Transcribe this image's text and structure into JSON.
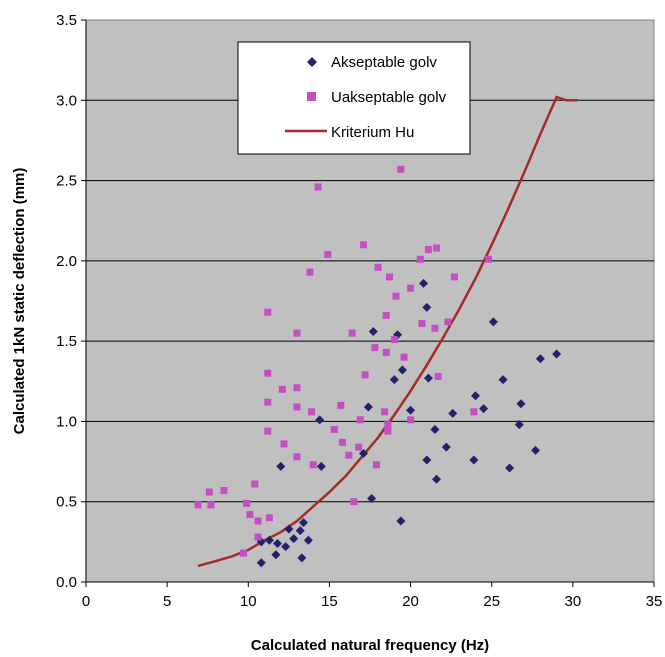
{
  "chart_data": {
    "type": "scatter",
    "title": "",
    "xlabel": "Calculated natural frequency (Hz)",
    "ylabel": "Calculated 1kN static deflection (mm)",
    "xlim": [
      0,
      35
    ],
    "ylim": [
      0,
      3.5
    ],
    "x_ticks": [
      "0",
      "5",
      "10",
      "15",
      "20",
      "25",
      "30",
      "35"
    ],
    "y_ticks": [
      "0.0",
      "0.5",
      "1.0",
      "1.5",
      "2.0",
      "2.5",
      "3.0",
      "3.5"
    ],
    "grid": "horizontal",
    "legend_position": "top-center",
    "plot_background": "#c0c0c0",
    "series": [
      {
        "name": "Akseptable golv",
        "marker": "diamond",
        "color": "#22226b",
        "points": [
          [
            10.8,
            0.12
          ],
          [
            10.8,
            0.25
          ],
          [
            11.3,
            0.26
          ],
          [
            11.7,
            0.17
          ],
          [
            11.8,
            0.24
          ],
          [
            12.0,
            0.72
          ],
          [
            12.3,
            0.22
          ],
          [
            12.5,
            0.33
          ],
          [
            12.8,
            0.27
          ],
          [
            13.2,
            0.32
          ],
          [
            13.3,
            0.15
          ],
          [
            13.4,
            0.37
          ],
          [
            13.7,
            0.26
          ],
          [
            14.4,
            1.01
          ],
          [
            14.5,
            0.72
          ],
          [
            17.1,
            0.8
          ],
          [
            17.4,
            1.09
          ],
          [
            17.6,
            0.52
          ],
          [
            17.7,
            1.56
          ],
          [
            19.0,
            1.26
          ],
          [
            19.2,
            1.54
          ],
          [
            19.4,
            0.38
          ],
          [
            19.5,
            1.32
          ],
          [
            20.0,
            1.07
          ],
          [
            20.8,
            1.86
          ],
          [
            21.0,
            1.71
          ],
          [
            21.0,
            0.76
          ],
          [
            21.1,
            1.27
          ],
          [
            21.5,
            0.95
          ],
          [
            21.6,
            0.64
          ],
          [
            22.2,
            0.84
          ],
          [
            22.6,
            1.05
          ],
          [
            23.9,
            0.76
          ],
          [
            24.0,
            1.16
          ],
          [
            24.5,
            1.08
          ],
          [
            25.1,
            1.62
          ],
          [
            25.7,
            1.26
          ],
          [
            26.1,
            0.71
          ],
          [
            26.7,
            0.98
          ],
          [
            26.8,
            1.11
          ],
          [
            27.7,
            0.82
          ],
          [
            28.0,
            1.39
          ],
          [
            29.0,
            1.42
          ]
        ]
      },
      {
        "name": "Uakseptable golv",
        "marker": "square",
        "color": "#c34fc3",
        "points": [
          [
            6.9,
            0.48
          ],
          [
            7.6,
            0.56
          ],
          [
            7.7,
            0.48
          ],
          [
            8.5,
            0.57
          ],
          [
            9.7,
            0.18
          ],
          [
            9.9,
            0.49
          ],
          [
            10.1,
            0.42
          ],
          [
            10.4,
            0.61
          ],
          [
            10.6,
            0.38
          ],
          [
            10.6,
            0.28
          ],
          [
            11.2,
            1.68
          ],
          [
            11.2,
            1.3
          ],
          [
            11.2,
            1.12
          ],
          [
            11.2,
            0.94
          ],
          [
            11.3,
            0.4
          ],
          [
            12.1,
            1.2
          ],
          [
            12.2,
            0.86
          ],
          [
            13.0,
            1.55
          ],
          [
            13.0,
            1.21
          ],
          [
            13.0,
            1.09
          ],
          [
            13.0,
            0.78
          ],
          [
            13.8,
            1.93
          ],
          [
            13.9,
            1.06
          ],
          [
            14.0,
            0.73
          ],
          [
            14.3,
            2.46
          ],
          [
            14.9,
            2.04
          ],
          [
            15.3,
            0.95
          ],
          [
            15.7,
            1.1
          ],
          [
            15.8,
            0.87
          ],
          [
            16.2,
            0.79
          ],
          [
            16.4,
            1.55
          ],
          [
            16.5,
            0.5
          ],
          [
            16.8,
            0.84
          ],
          [
            16.9,
            1.01
          ],
          [
            17.1,
            2.1
          ],
          [
            17.2,
            1.29
          ],
          [
            17.8,
            1.46
          ],
          [
            17.9,
            0.73
          ],
          [
            18.0,
            1.96
          ],
          [
            18.4,
            1.06
          ],
          [
            18.5,
            1.66
          ],
          [
            18.5,
            1.43
          ],
          [
            18.6,
            0.98
          ],
          [
            18.6,
            0.94
          ],
          [
            18.7,
            1.9
          ],
          [
            19.1,
            1.78
          ],
          [
            19.0,
            1.51
          ],
          [
            19.4,
            2.57
          ],
          [
            19.6,
            1.4
          ],
          [
            20.0,
            1.83
          ],
          [
            20.0,
            1.01
          ],
          [
            20.6,
            2.01
          ],
          [
            20.7,
            1.61
          ],
          [
            21.1,
            2.07
          ],
          [
            21.5,
            1.58
          ],
          [
            21.6,
            2.08
          ],
          [
            21.7,
            1.28
          ],
          [
            22.3,
            1.62
          ],
          [
            22.7,
            1.9
          ],
          [
            23.9,
            1.06
          ],
          [
            24.8,
            2.01
          ]
        ]
      },
      {
        "name": "Kriterium Hu",
        "marker": "line",
        "color": "#a52a2a",
        "points": [
          [
            6.9,
            0.1
          ],
          [
            8.0,
            0.13
          ],
          [
            9.0,
            0.16
          ],
          [
            10.0,
            0.2
          ],
          [
            11.0,
            0.26
          ],
          [
            12.0,
            0.31
          ],
          [
            13.0,
            0.38
          ],
          [
            14.0,
            0.47
          ],
          [
            15.0,
            0.56
          ],
          [
            16.0,
            0.66
          ],
          [
            17.0,
            0.78
          ],
          [
            18.0,
            0.9
          ],
          [
            19.0,
            1.04
          ],
          [
            20.0,
            1.19
          ],
          [
            21.0,
            1.35
          ],
          [
            22.0,
            1.52
          ],
          [
            23.0,
            1.7
          ],
          [
            24.0,
            1.89
          ],
          [
            25.0,
            2.1
          ],
          [
            26.0,
            2.32
          ],
          [
            27.0,
            2.55
          ],
          [
            28.0,
            2.79
          ],
          [
            29.0,
            3.02
          ],
          [
            29.6,
            3.0
          ],
          [
            30.3,
            3.0
          ]
        ]
      }
    ]
  }
}
